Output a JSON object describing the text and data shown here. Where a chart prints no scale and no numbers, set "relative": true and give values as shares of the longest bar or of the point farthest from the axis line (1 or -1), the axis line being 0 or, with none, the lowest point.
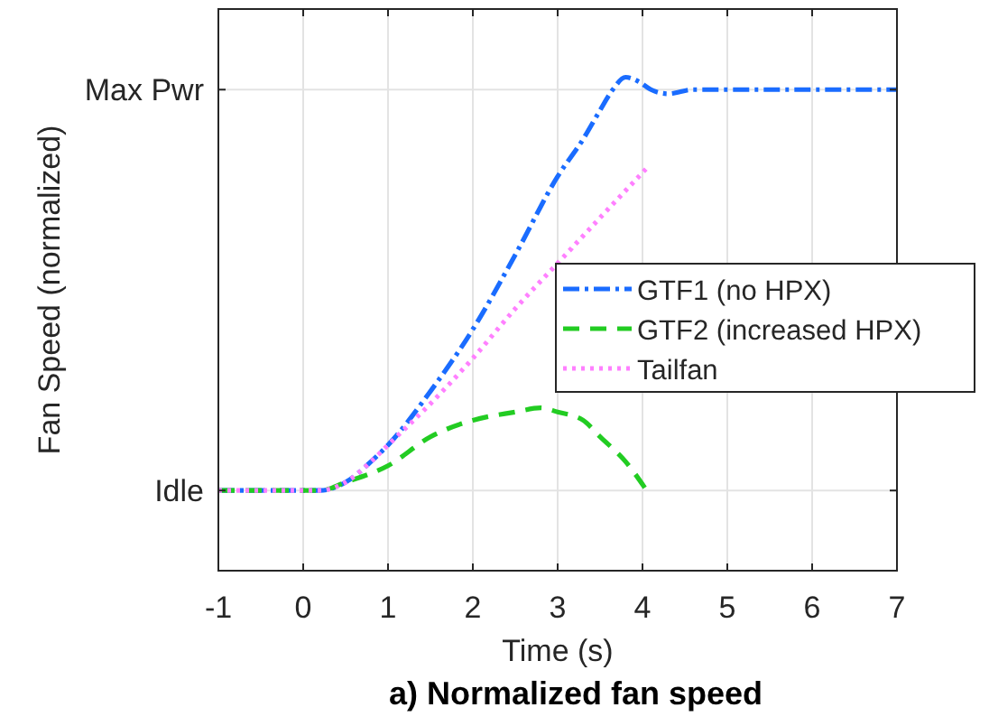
{
  "chart_data": {
    "type": "line",
    "title": "a) Normalized fan speed",
    "xlabel": "Time (s)",
    "ylabel": "Fan Speed (normalized)",
    "xlim": [
      -1,
      7
    ],
    "xticks": [
      -1,
      0,
      1,
      2,
      3,
      4,
      5,
      6,
      7
    ],
    "relative": true,
    "ref_lines": [
      {
        "axis": "y",
        "value": 0,
        "label": "Idle"
      },
      {
        "axis": "y",
        "value": 0.97,
        "label": "Max Pwr"
      }
    ],
    "grid": "x",
    "legend": "right",
    "series": [
      {
        "name": "GTF1 (no HPX)",
        "color": "#1a6cff",
        "line_style": "dashdot",
        "x": [
          -1,
          0,
          0.2,
          0.5,
          0.8,
          1,
          1.5,
          2,
          2.5,
          3,
          3.3,
          3.5,
          3.65,
          3.8,
          3.95,
          4.1,
          4.3,
          4.6,
          4.9,
          5.5,
          6,
          7
        ],
        "values": [
          0,
          0,
          0,
          0.02,
          0.07,
          0.11,
          0.24,
          0.39,
          0.57,
          0.76,
          0.85,
          0.92,
          0.97,
          1,
          0.99,
          0.97,
          0.96,
          0.97,
          0.97,
          0.97,
          0.97,
          0.97
        ]
      },
      {
        "name": "GTF2 (increased HPX)",
        "color": "#22cc22",
        "line_style": "dashed",
        "x": [
          -1,
          0,
          0.2,
          0.5,
          1,
          1.5,
          2,
          2.5,
          2.8,
          3,
          3.3,
          3.5,
          3.8,
          4.05
        ],
        "values": [
          0,
          0,
          0,
          0.02,
          0.06,
          0.13,
          0.17,
          0.19,
          0.2,
          0.19,
          0.17,
          0.13,
          0.07,
          0
        ]
      },
      {
        "name": "Tailfan",
        "color": "#ff80ff",
        "line_style": "dotted",
        "x": [
          -1,
          0,
          0.2,
          0.5,
          0.8,
          1,
          1.5,
          2,
          2.5,
          3,
          3.5,
          4.05
        ],
        "values": [
          0,
          0,
          0,
          0.02,
          0.07,
          0.11,
          0.21,
          0.32,
          0.44,
          0.55,
          0.66,
          0.78
        ]
      }
    ]
  }
}
